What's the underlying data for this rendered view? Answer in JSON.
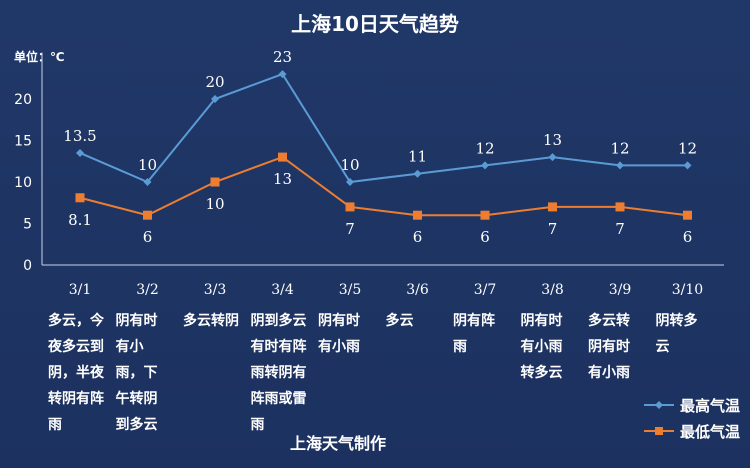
{
  "chart_data": {
    "type": "line",
    "title": "上海10日天气趋势",
    "unit_label": "单位：℃",
    "categories": [
      "3/1",
      "3/2",
      "3/3",
      "3/4",
      "3/5",
      "3/6",
      "3/7",
      "3/8",
      "3/9",
      "3/10"
    ],
    "series": [
      {
        "name": "最高气温",
        "values": [
          13.5,
          10,
          20,
          23,
          10,
          11,
          12,
          13,
          12,
          12
        ],
        "color": "#5b9bd5",
        "marker": "diamond"
      },
      {
        "name": "最低气温",
        "values": [
          8.1,
          6,
          10,
          13,
          7,
          6,
          6,
          7,
          7,
          6
        ],
        "color": "#ed7d31",
        "marker": "square"
      }
    ],
    "ylim": [
      0,
      25
    ],
    "yticks": [
      0,
      5,
      10,
      15,
      20
    ],
    "grid": false,
    "legend": "bottom-right",
    "weather": [
      [
        "多云，今",
        "夜多云到",
        "阴，半夜",
        "转阴有阵",
        "雨"
      ],
      [
        "阴有时",
        "有小",
        "雨，下",
        "午转阴",
        "到多云"
      ],
      [
        "多云转阴"
      ],
      [
        "阴到多云",
        "有时有阵",
        "雨转阴有",
        "阵雨或雷",
        "雨"
      ],
      [
        "阴有时",
        "有小雨"
      ],
      [
        "多云"
      ],
      [
        "阴有阵",
        "雨"
      ],
      [
        "阴有时",
        "有小雨",
        "转多云"
      ],
      [
        "多云转",
        "阴有时",
        "有小雨"
      ],
      [
        "阴转多",
        "云"
      ]
    ],
    "credit": "上海天气制作"
  }
}
